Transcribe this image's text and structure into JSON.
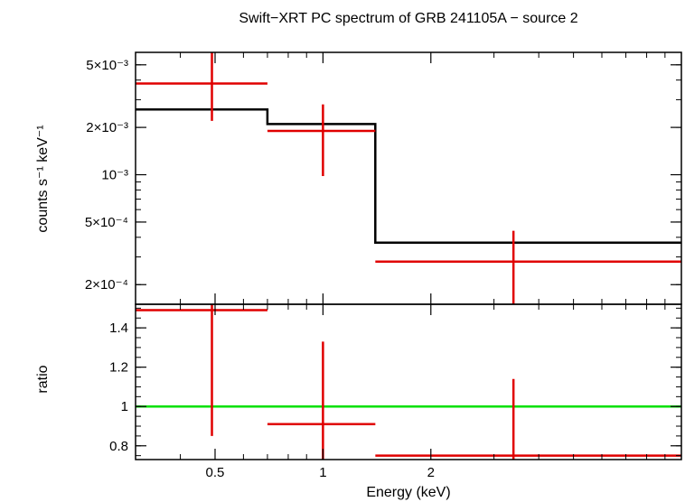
{
  "chart_data": {
    "type": "scatter",
    "title": "Swift−XRT PC spectrum of GRB 241105A − source 2",
    "xlabel": "Energy (keV)",
    "x_scale": "log",
    "xlim": [
      0.3,
      10
    ],
    "x_ticks": [
      "0.5",
      "1",
      "2"
    ],
    "panels": [
      {
        "ylabel": "counts s⁻¹ keV⁻¹",
        "y_scale": "log",
        "ylim": [
          0.00015,
          0.006
        ],
        "y_ticks": [
          "5×10⁻³",
          "2×10⁻³",
          "10⁻³",
          "5×10⁻⁴",
          "2×10⁻⁴"
        ],
        "data": [
          {
            "x": 0.49,
            "xlo": 0.3,
            "xhi": 0.7,
            "y": 0.0038,
            "ylo": 0.0022,
            "yhi": 0.006
          },
          {
            "x": 1.0,
            "xlo": 0.7,
            "xhi": 1.4,
            "y": 0.0019,
            "ylo": 0.00098,
            "yhi": 0.0028
          },
          {
            "x": 3.4,
            "xlo": 1.4,
            "xhi": 10.0,
            "y": 0.00028,
            "ylo": 0.00015,
            "yhi": 0.00044
          }
        ],
        "model": [
          {
            "xlo": 0.3,
            "xhi": 0.7,
            "y": 0.0026
          },
          {
            "xlo": 0.7,
            "xhi": 1.4,
            "y": 0.0021
          },
          {
            "xlo": 1.4,
            "xhi": 10.0,
            "y": 0.00037
          }
        ]
      },
      {
        "ylabel": "ratio",
        "y_scale": "linear",
        "ylim": [
          0.73,
          1.52
        ],
        "y_ticks": [
          "0.8",
          "1",
          "1.2",
          "1.4"
        ],
        "data": [
          {
            "x": 0.49,
            "xlo": 0.3,
            "xhi": 0.7,
            "y": 1.49,
            "ylo": 0.85,
            "yhi": 1.52
          },
          {
            "x": 1.0,
            "xlo": 0.7,
            "xhi": 1.4,
            "y": 0.91,
            "ylo": 0.73,
            "yhi": 1.33
          },
          {
            "x": 3.4,
            "xlo": 1.4,
            "xhi": 10.0,
            "y": 0.75,
            "ylo": 0.73,
            "yhi": 1.14
          }
        ],
        "reference_line": 1.0
      }
    ],
    "colors": {
      "data": "#e00000",
      "model": "#000000",
      "reference": "#00e000",
      "axes": "#000000"
    },
    "grid": false
  }
}
